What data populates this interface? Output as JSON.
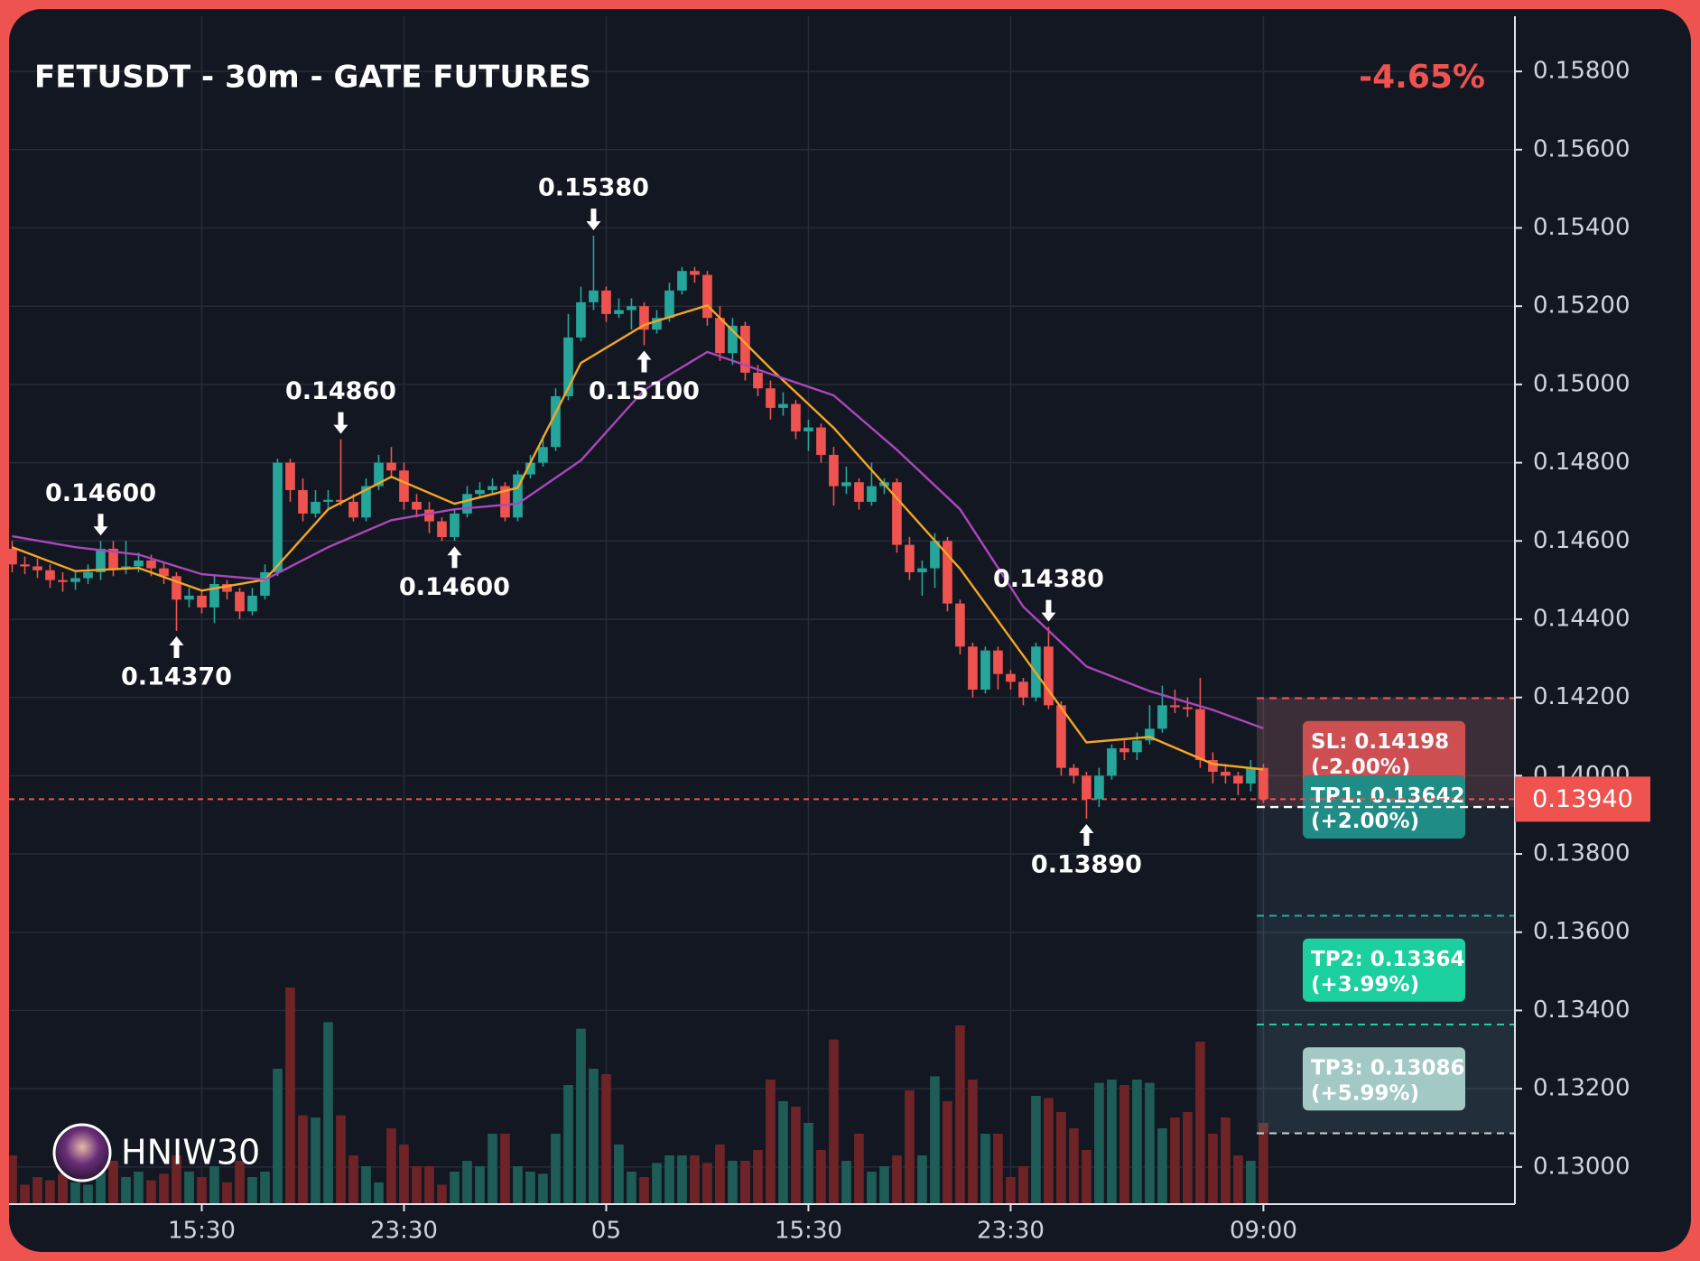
{
  "chart_data": {
    "type": "candlestick",
    "title": "FETUSDT - 30m - GATE FUTURES",
    "change": "-4.65%",
    "ylim": [
      0.12905,
      0.15941
    ],
    "yticks": [
      {
        "value": 0.13,
        "label": "0.13000"
      },
      {
        "value": 0.132,
        "label": "0.13200"
      },
      {
        "value": 0.134,
        "label": "0.13400"
      },
      {
        "value": 0.136,
        "label": "0.13600"
      },
      {
        "value": 0.138,
        "label": "0.13800"
      },
      {
        "value": 0.14,
        "label": "0.14000"
      },
      {
        "value": 0.142,
        "label": "0.14200"
      },
      {
        "value": 0.144,
        "label": "0.14400"
      },
      {
        "value": 0.146,
        "label": "0.14600"
      },
      {
        "value": 0.148,
        "label": "0.14800"
      },
      {
        "value": 0.15,
        "label": "0.15000"
      },
      {
        "value": 0.152,
        "label": "0.15200"
      },
      {
        "value": 0.154,
        "label": "0.15400"
      },
      {
        "value": 0.156,
        "label": "0.15600"
      },
      {
        "value": 0.158,
        "label": "0.15800"
      }
    ],
    "xlim": [
      -0.25,
      118.9
    ],
    "xticks": [
      {
        "value": 15,
        "label": "15:30"
      },
      {
        "value": 31,
        "label": "23:30"
      },
      {
        "value": 47,
        "label": "05"
      },
      {
        "value": 63,
        "label": "15:30"
      },
      {
        "value": 79,
        "label": "23:30"
      },
      {
        "value": 99,
        "label": "09:00"
      }
    ],
    "grid": true,
    "up_color": "#26a69a",
    "down_color": "#ef5350",
    "volume_up_color": "#1e5c57",
    "volume_down_color": "#6e2427",
    "open": [
      0.1458,
      0.1454,
      0.14535,
      0.14525,
      0.145,
      0.14495,
      0.14505,
      0.1452,
      0.1458,
      0.1453,
      0.14535,
      0.1455,
      0.1453,
      0.1451,
      0.1445,
      0.1446,
      0.1443,
      0.1449,
      0.1447,
      0.1442,
      0.1446,
      0.1452,
      0.148,
      0.1473,
      0.1467,
      0.147,
      0.14705,
      0.147,
      0.1466,
      0.1474,
      0.148,
      0.1478,
      0.147,
      0.1468,
      0.1465,
      0.1461,
      0.1467,
      0.1472,
      0.1473,
      0.1474,
      0.1466,
      0.1477,
      0.148,
      0.1484,
      0.1497,
      0.1512,
      0.1521,
      0.1524,
      0.1518,
      0.1519,
      0.152,
      0.1514,
      0.1517,
      0.1524,
      0.1529,
      0.1528,
      0.1517,
      0.1508,
      0.1515,
      0.1503,
      0.1499,
      0.1494,
      0.1495,
      0.1488,
      0.1489,
      0.1482,
      0.1474,
      0.1475,
      0.147,
      0.1474,
      0.1475,
      0.1459,
      0.1452,
      0.1453,
      0.146,
      0.1444,
      0.1433,
      0.1422,
      0.1432,
      0.1426,
      0.1424,
      0.142,
      0.1433,
      0.1418,
      0.1402,
      0.14,
      0.1394,
      0.14,
      0.1407,
      0.1406,
      0.1409,
      0.1412,
      0.1418,
      0.14175,
      0.1417,
      0.1404,
      0.1401,
      0.14,
      0.1398,
      0.1402
    ],
    "high": [
      0.146,
      0.1456,
      0.14555,
      0.1454,
      0.1452,
      0.14525,
      0.1454,
      0.146,
      0.146,
      0.146,
      0.1457,
      0.14565,
      0.14545,
      0.1452,
      0.1448,
      0.14475,
      0.1451,
      0.145,
      0.1448,
      0.1448,
      0.1454,
      0.1481,
      0.1481,
      0.1476,
      0.1473,
      0.1473,
      0.1486,
      0.1472,
      0.1476,
      0.1482,
      0.1484,
      0.148,
      0.1472,
      0.147,
      0.1466,
      0.1468,
      0.1474,
      0.1475,
      0.1476,
      0.1475,
      0.1478,
      0.1482,
      0.1487,
      0.1499,
      0.1518,
      0.1525,
      0.1538,
      0.1525,
      0.1522,
      0.1522,
      0.1521,
      0.1519,
      0.1526,
      0.153,
      0.153,
      0.1529,
      0.152,
      0.1517,
      0.1516,
      0.1505,
      0.1501,
      0.1498,
      0.1496,
      0.1491,
      0.149,
      0.1484,
      0.1479,
      0.1476,
      0.148,
      0.1476,
      0.1476,
      0.1461,
      0.1455,
      0.1462,
      0.1461,
      0.1445,
      0.1434,
      0.1433,
      0.1433,
      0.1427,
      0.1425,
      0.1434,
      0.1438,
      0.1419,
      0.1403,
      0.1401,
      0.1402,
      0.1408,
      0.1409,
      0.1411,
      0.1418,
      0.1423,
      0.1422,
      0.142,
      0.1425,
      0.1406,
      0.1403,
      0.1401,
      0.1404,
      0.1403
    ],
    "low": [
      0.1452,
      0.14515,
      0.14505,
      0.1448,
      0.1447,
      0.14475,
      0.1449,
      0.145,
      0.1451,
      0.14515,
      0.1452,
      0.1451,
      0.1449,
      0.1437,
      0.1443,
      0.14415,
      0.1439,
      0.1445,
      0.144,
      0.1441,
      0.1445,
      0.1451,
      0.147,
      0.1465,
      0.1466,
      0.1468,
      0.1469,
      0.1465,
      0.1465,
      0.1473,
      0.1476,
      0.1468,
      0.1466,
      0.1462,
      0.146,
      0.146,
      0.1466,
      0.1471,
      0.1472,
      0.1465,
      0.1465,
      0.1476,
      0.1479,
      0.1483,
      0.1496,
      0.1511,
      0.1519,
      0.1516,
      0.1517,
      0.1514,
      0.151,
      0.1513,
      0.1516,
      0.1523,
      0.1526,
      0.1515,
      0.1506,
      0.1505,
      0.1501,
      0.1497,
      0.1491,
      0.1492,
      0.1486,
      0.1483,
      0.148,
      0.1469,
      0.1472,
      0.1468,
      0.1469,
      0.1472,
      0.1457,
      0.145,
      0.1446,
      0.1448,
      0.1442,
      0.1431,
      0.142,
      0.1421,
      0.1422,
      0.1422,
      0.1418,
      0.1419,
      0.1417,
      0.14,
      0.1398,
      0.1389,
      0.1392,
      0.1399,
      0.1404,
      0.1404,
      0.1408,
      0.1411,
      0.1416,
      0.1415,
      0.1402,
      0.1398,
      0.1398,
      0.1395,
      0.1396,
      0.1393
    ],
    "close": [
      0.1454,
      0.14535,
      0.14525,
      0.145,
      0.14495,
      0.14505,
      0.1452,
      0.1458,
      0.1453,
      0.14535,
      0.1455,
      0.1453,
      0.1451,
      0.1445,
      0.1446,
      0.1443,
      0.1449,
      0.1447,
      0.1442,
      0.1446,
      0.1452,
      0.148,
      0.1473,
      0.1467,
      0.147,
      0.14705,
      0.147,
      0.1466,
      0.1474,
      0.148,
      0.1478,
      0.147,
      0.1468,
      0.1465,
      0.1461,
      0.1467,
      0.1472,
      0.1473,
      0.1474,
      0.1466,
      0.1477,
      0.148,
      0.1484,
      0.1497,
      0.1512,
      0.1521,
      0.1524,
      0.1518,
      0.1519,
      0.152,
      0.1514,
      0.1517,
      0.1524,
      0.1529,
      0.1528,
      0.1517,
      0.1508,
      0.1515,
      0.1503,
      0.1499,
      0.1494,
      0.1495,
      0.1488,
      0.1489,
      0.1482,
      0.1474,
      0.1475,
      0.147,
      0.1474,
      0.1475,
      0.1459,
      0.1452,
      0.1453,
      0.146,
      0.1444,
      0.1433,
      0.1422,
      0.1432,
      0.1426,
      0.1424,
      0.142,
      0.1433,
      0.1418,
      0.1402,
      0.14,
      0.1394,
      0.14,
      0.1407,
      0.1406,
      0.1409,
      0.1412,
      0.1418,
      0.14175,
      0.1417,
      0.1404,
      0.1401,
      0.14,
      0.1398,
      0.1402,
      0.1394
    ],
    "volume": [
      45,
      18,
      25,
      22,
      28,
      20,
      18,
      30,
      40,
      25,
      30,
      22,
      28,
      45,
      30,
      25,
      35,
      20,
      40,
      25,
      30,
      125,
      200,
      82,
      80,
      168,
      82,
      45,
      35,
      20,
      70,
      55,
      35,
      35,
      18,
      30,
      40,
      35,
      65,
      65,
      35,
      30,
      28,
      65,
      110,
      162,
      125,
      120,
      55,
      30,
      25,
      38,
      45,
      45,
      45,
      38,
      55,
      40,
      40,
      50,
      115,
      95,
      90,
      75,
      50,
      152,
      40,
      65,
      30,
      35,
      45,
      105,
      45,
      118,
      95,
      165,
      115,
      65,
      65,
      25,
      35,
      100,
      98,
      85,
      70,
      50,
      112,
      115,
      110,
      115,
      112,
      70,
      80,
      85,
      150,
      65,
      80,
      45,
      40,
      75
    ],
    "moving_averages": [
      {
        "color": "#f5a623",
        "x": [
          0,
          5,
          10,
          15,
          20,
          25,
          30,
          35,
          40,
          45,
          50,
          55,
          60,
          65,
          70,
          75,
          80,
          85,
          90,
          95,
          99
        ],
        "values": [
          0.14584,
          0.14523,
          0.14531,
          0.14473,
          0.14501,
          0.14681,
          0.14764,
          0.14695,
          0.14736,
          0.15055,
          0.15152,
          0.15202,
          0.15041,
          0.14889,
          0.14709,
          0.14529,
          0.14307,
          0.14085,
          0.14099,
          0.1403,
          0.14016
        ]
      },
      {
        "color": "#ab47bc",
        "x": [
          0,
          5,
          10,
          15,
          20,
          25,
          30,
          35,
          40,
          45,
          50,
          55,
          60,
          65,
          70,
          75,
          80,
          85,
          90,
          95,
          99
        ],
        "values": [
          0.14612,
          0.14584,
          0.14565,
          0.14515,
          0.14501,
          0.14584,
          0.14653,
          0.14681,
          0.14695,
          0.14806,
          0.14986,
          0.15083,
          0.15027,
          0.14972,
          0.14833,
          0.14681,
          0.14432,
          0.14279,
          0.14216,
          0.14168,
          0.14121
        ]
      }
    ],
    "swing_highs": [
      {
        "index": 7,
        "value": 0.146,
        "label": "0.14600"
      },
      {
        "index": 26,
        "value": 0.1486,
        "label": "0.14860"
      },
      {
        "index": 46,
        "value": 0.1538,
        "label": "0.15380"
      },
      {
        "index": 82,
        "value": 0.1438,
        "label": "0.14380"
      }
    ],
    "swing_lows": [
      {
        "index": 13,
        "value": 0.1437,
        "label": "0.14370"
      },
      {
        "index": 35,
        "value": 0.146,
        "label": "0.14600"
      },
      {
        "index": 50,
        "value": 0.151,
        "label": "0.15100"
      },
      {
        "index": 85,
        "value": 0.1389,
        "label": "0.13890"
      }
    ],
    "current_price": {
      "value": 0.1394,
      "label": "0.13940"
    },
    "entry": 0.1392,
    "levels": [
      {
        "label": "SL: 0.14198",
        "change": "(-2.00%)",
        "value": 0.14198,
        "color": "#d64545",
        "line_color": "#ef5350"
      },
      {
        "label": "TP1: 0.13642",
        "change": "(+2.00%)",
        "value": 0.13642,
        "color": "#1f8c85",
        "line_color": "#26a69a"
      },
      {
        "label": "TP2: 0.13364",
        "change": "(+3.99%)",
        "value": 0.13364,
        "color": "#1ccf9f",
        "line_color": "#1ccf9f"
      },
      {
        "label": "TP3: 0.13086",
        "change": "(+5.99%)",
        "value": 0.13086,
        "color": "#a3c9c5",
        "line_color": "#c8d4d4"
      }
    ],
    "watermark": "HNIW30"
  }
}
